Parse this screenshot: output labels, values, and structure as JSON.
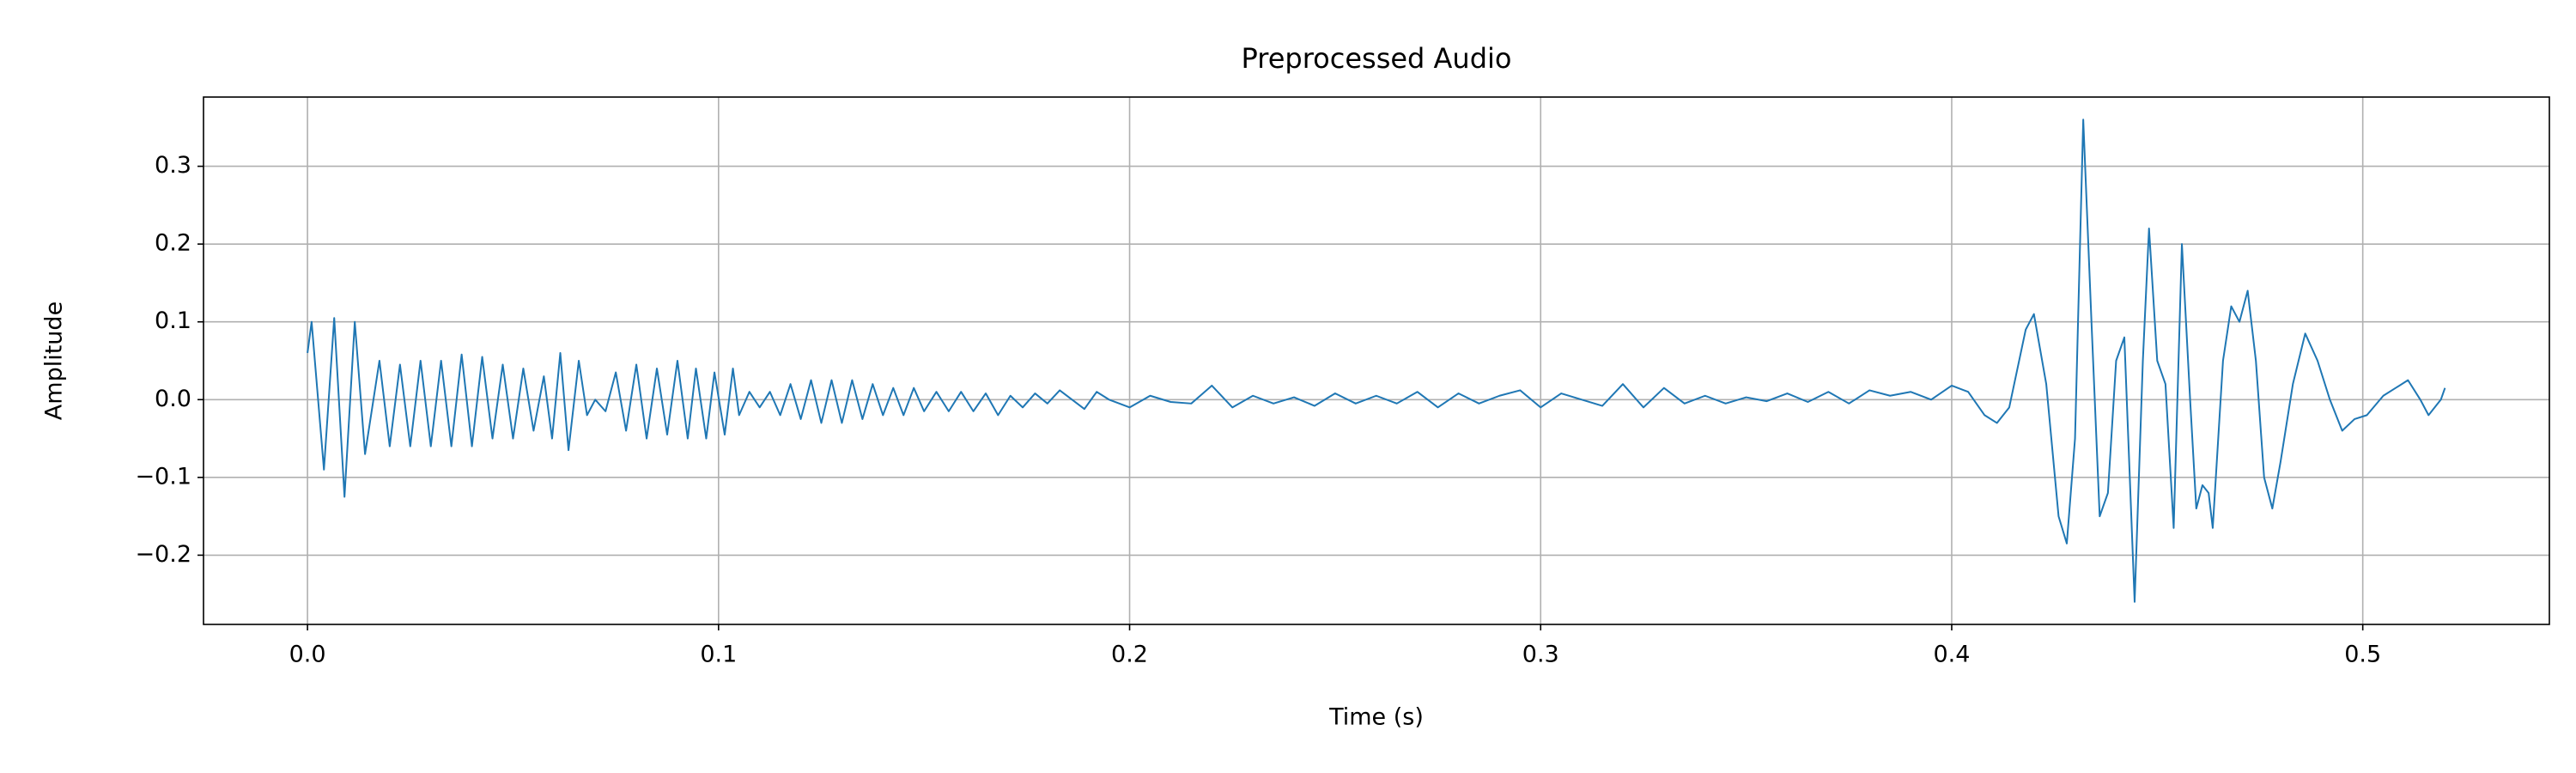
{
  "chart_data": {
    "type": "line",
    "title": "Preprocessed Audio",
    "x_label": "Time (s)",
    "y_label": "Amplitude",
    "color": "#1f77b4",
    "grid": true,
    "xlim": [
      -0.0253,
      0.5454
    ],
    "ylim": [
      -0.289,
      0.389
    ],
    "xticks": [
      {
        "value": 0,
        "label": "0.0"
      },
      0.1,
      0.2,
      0.3,
      0.4,
      0.5
    ],
    "yticks": [
      {
        "value": -0.2,
        "label": "−0.2"
      },
      {
        "value": -0.1,
        "label": "−0.1"
      },
      {
        "value": 0,
        "label": "0.0"
      },
      0.1,
      0.2,
      0.3
    ],
    "x": [
      0,
      0.001,
      0.004,
      0.0065,
      0.009,
      0.0115,
      0.014,
      0.0175,
      0.02,
      0.0225,
      0.025,
      0.0275,
      0.03,
      0.0325,
      0.035,
      0.0375,
      0.04,
      0.0425,
      0.045,
      0.0475,
      0.05,
      0.0525,
      0.055,
      0.0575,
      0.0595,
      0.0615,
      0.0635,
      0.066,
      0.068,
      0.07,
      0.0725,
      0.075,
      0.0775,
      0.08,
      0.0825,
      0.085,
      0.0875,
      0.09,
      0.0925,
      0.0945,
      0.097,
      0.099,
      0.1015,
      0.1035,
      0.105,
      0.1075,
      0.11,
      0.1125,
      0.115,
      0.1175,
      0.12,
      0.1225,
      0.125,
      0.1275,
      0.13,
      0.1325,
      0.135,
      0.1375,
      0.14,
      0.1425,
      0.145,
      0.1475,
      0.15,
      0.153,
      0.156,
      0.159,
      0.162,
      0.165,
      0.168,
      0.171,
      0.174,
      0.177,
      0.18,
      0.183,
      0.186,
      0.189,
      0.192,
      0.195,
      0.2,
      0.205,
      0.21,
      0.215,
      0.22,
      0.225,
      0.23,
      0.235,
      0.24,
      0.245,
      0.25,
      0.255,
      0.26,
      0.265,
      0.27,
      0.275,
      0.28,
      0.285,
      0.29,
      0.295,
      0.3,
      0.305,
      0.31,
      0.315,
      0.32,
      0.325,
      0.33,
      0.335,
      0.34,
      0.345,
      0.35,
      0.355,
      0.36,
      0.365,
      0.37,
      0.375,
      0.38,
      0.385,
      0.39,
      0.395,
      0.4,
      0.404,
      0.408,
      0.411,
      0.414,
      0.418,
      0.42,
      0.423,
      0.426,
      0.428,
      0.43,
      0.432,
      0.434,
      0.436,
      0.438,
      0.44,
      0.442,
      0.4445,
      0.4465,
      0.448,
      0.45,
      0.452,
      0.454,
      0.456,
      0.458,
      0.4595,
      0.461,
      0.4625,
      0.4635,
      0.466,
      0.468,
      0.47,
      0.472,
      0.474,
      0.476,
      0.478,
      0.48,
      0.483,
      0.486,
      0.489,
      0.492,
      0.495,
      0.498,
      0.501,
      0.505,
      0.508,
      0.511,
      0.514,
      0.516,
      0.519,
      0.52
    ],
    "values": [
      0.06,
      0.1,
      -0.09,
      0.105,
      -0.125,
      0.1,
      -0.07,
      0.05,
      -0.06,
      0.045,
      -0.06,
      0.05,
      -0.06,
      0.05,
      -0.06,
      0.058,
      -0.06,
      0.055,
      -0.05,
      0.045,
      -0.05,
      0.04,
      -0.04,
      0.03,
      -0.05,
      0.06,
      -0.065,
      0.05,
      -0.02,
      0.0,
      -0.015,
      0.035,
      -0.04,
      0.045,
      -0.05,
      0.04,
      -0.045,
      0.05,
      -0.05,
      0.04,
      -0.05,
      0.035,
      -0.045,
      0.04,
      -0.02,
      0.01,
      -0.01,
      0.01,
      -0.02,
      0.02,
      -0.025,
      0.025,
      -0.03,
      0.025,
      -0.03,
      0.025,
      -0.025,
      0.02,
      -0.02,
      0.015,
      -0.02,
      0.015,
      -0.015,
      0.01,
      -0.015,
      0.01,
      -0.015,
      0.008,
      -0.02,
      0.005,
      -0.01,
      0.008,
      -0.005,
      0.012,
      0.0,
      -0.012,
      0.01,
      0.0,
      -0.01,
      0.005,
      -0.003,
      -0.005,
      0.018,
      -0.01,
      0.005,
      -0.005,
      0.003,
      -0.008,
      0.008,
      -0.005,
      0.005,
      -0.005,
      0.01,
      -0.01,
      0.008,
      -0.005,
      0.005,
      0.012,
      -0.01,
      0.008,
      0.0,
      -0.008,
      0.02,
      -0.01,
      0.015,
      -0.005,
      0.005,
      -0.005,
      0.003,
      -0.002,
      0.008,
      -0.003,
      0.01,
      -0.005,
      0.012,
      0.005,
      0.01,
      0.0,
      0.018,
      0.01,
      -0.02,
      -0.03,
      -0.01,
      0.09,
      0.11,
      0.02,
      -0.15,
      -0.185,
      -0.05,
      0.36,
      0.1,
      -0.15,
      -0.12,
      0.05,
      0.08,
      -0.26,
      0.05,
      0.22,
      0.05,
      0.02,
      -0.165,
      0.2,
      0.0,
      -0.14,
      -0.11,
      -0.12,
      -0.165,
      0.05,
      0.12,
      0.1,
      0.14,
      0.05,
      -0.1,
      -0.14,
      -0.08,
      0.02,
      0.085,
      0.05,
      0.0,
      -0.04,
      -0.025,
      -0.02,
      0.005,
      0.015,
      0.025,
      0.0,
      -0.02,
      0.0,
      0.015
    ]
  }
}
